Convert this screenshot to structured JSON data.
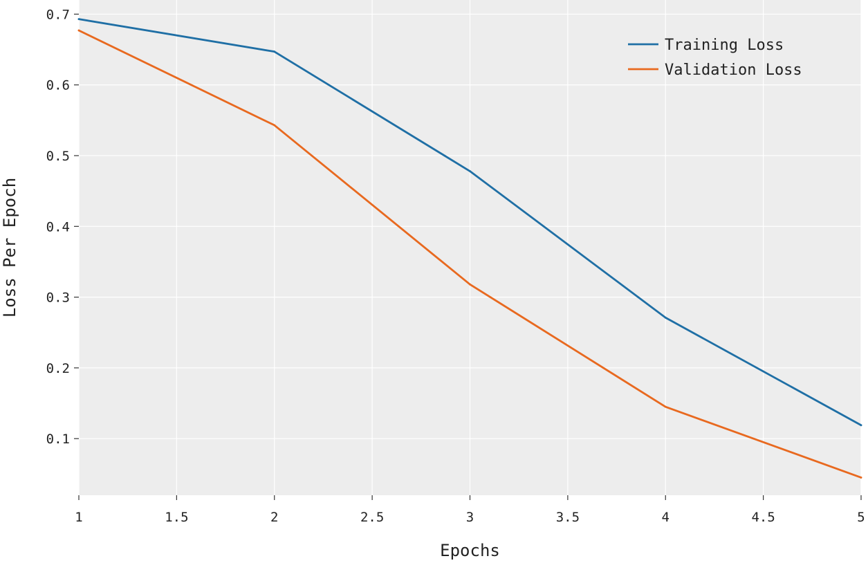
{
  "chart_data": {
    "type": "line",
    "title": "",
    "xlabel": "Epochs",
    "ylabel": "Loss Per Epoch",
    "xlim": [
      1,
      5
    ],
    "ylim": [
      0.02,
      0.72
    ],
    "xticks": [
      1,
      1.5,
      2,
      2.5,
      3,
      3.5,
      4,
      4.5,
      5
    ],
    "xtick_labels": [
      "1",
      "1.5",
      "2",
      "2.5",
      "3",
      "3.5",
      "4",
      "4.5",
      "5"
    ],
    "yticks": [
      0.1,
      0.2,
      0.3,
      0.4,
      0.5,
      0.6,
      0.7
    ],
    "ytick_labels": [
      "0.1",
      "0.2",
      "0.3",
      "0.4",
      "0.5",
      "0.6",
      "0.7"
    ],
    "grid": true,
    "legend_position": "top-right",
    "x": [
      1,
      2,
      3,
      4,
      5
    ],
    "series": [
      {
        "name": "Training Loss",
        "color": "#1f6fa5",
        "values": [
          0.693,
          0.647,
          0.478,
          0.271,
          0.119
        ]
      },
      {
        "name": "Validation Loss",
        "color": "#e8691f",
        "values": [
          0.677,
          0.543,
          0.318,
          0.145,
          0.045
        ]
      }
    ],
    "colors": {
      "plot_background": "#ededed",
      "grid": "#ffffff"
    }
  }
}
